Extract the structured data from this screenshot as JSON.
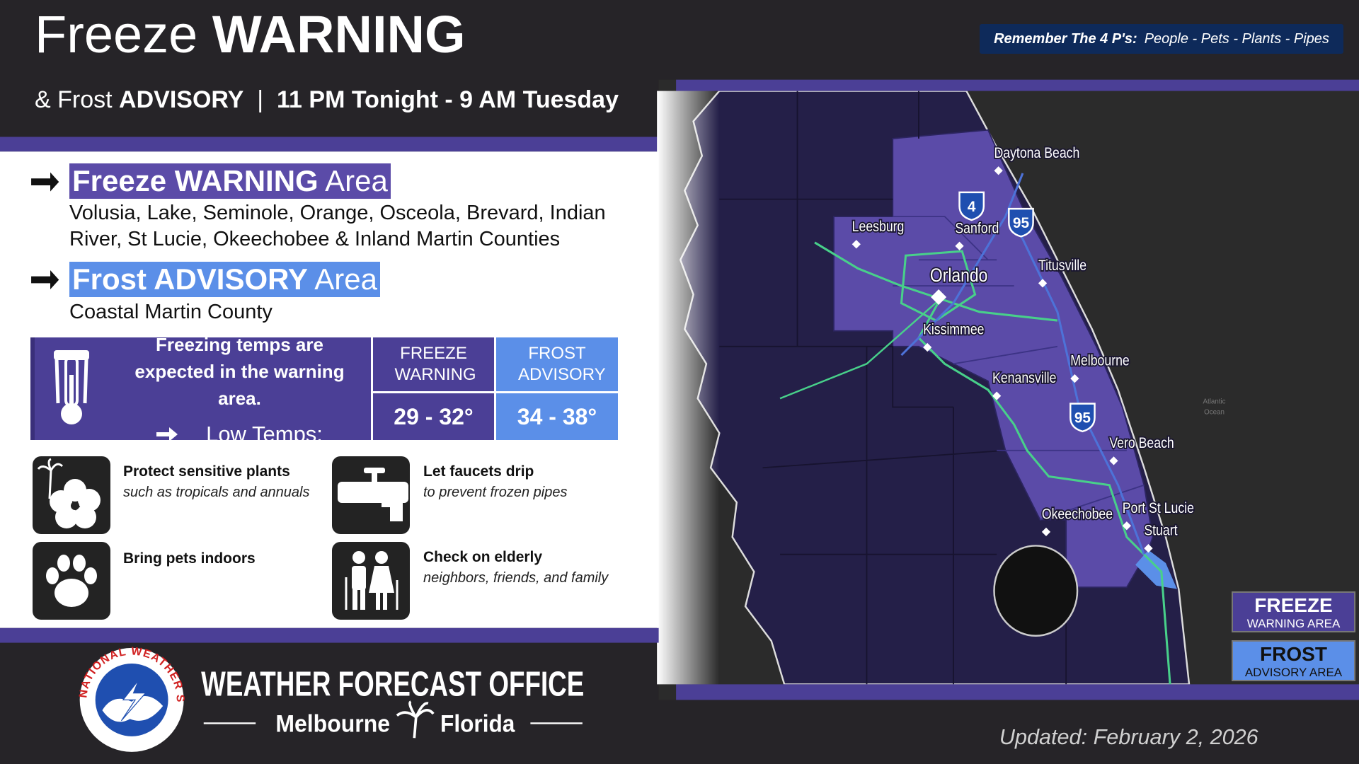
{
  "header": {
    "title_light": "Freeze",
    "title_bold": "WARNING",
    "subtitle_light": "& Frost",
    "subtitle_bold": "ADVISORY",
    "separator": "|",
    "time": "11 PM Tonight - 9 AM Tuesday"
  },
  "reminder": {
    "label": "Remember The 4 P's:",
    "items": "People - Pets - Plants - Pipes"
  },
  "areas": [
    {
      "heading_bold": "Freeze WARNING",
      "heading_light": "Area",
      "counties": "Volusia, Lake, Seminole, Orange, Osceola, Brevard, Indian River, St Lucie, Okeechobee & Inland Martin Counties"
    },
    {
      "heading_bold": "Frost ADVISORY",
      "heading_light": "Area",
      "counties": "Coastal Martin County"
    }
  ],
  "temps": {
    "note": "Freezing temps are expected in the warning area.",
    "low_label": "Low Temps:",
    "columns": [
      {
        "title": "FREEZE WARNING",
        "range": "29 - 32°"
      },
      {
        "title": "FROST ADVISORY",
        "range": "34 - 38°"
      }
    ]
  },
  "tips": [
    {
      "title": "Protect sensitive plants",
      "detail": "such as tropicals and annuals"
    },
    {
      "title": "Let faucets drip",
      "detail": "to prevent frozen pipes"
    },
    {
      "title": "Bring pets indoors"
    },
    {
      "title": "Check on elderly",
      "detail": "neighbors, friends, and family"
    }
  ],
  "map": {
    "cities": [
      {
        "name": "Daytona Beach",
        "x": 1147,
        "y": 184
      },
      {
        "name": "Leesburg",
        "x": 983,
        "y": 269
      },
      {
        "name": "Sanford",
        "x": 1102,
        "y": 271
      },
      {
        "name": "Orlando",
        "x": 1073,
        "y": 327
      },
      {
        "name": "Titusville",
        "x": 1198,
        "y": 314
      },
      {
        "name": "Kissimmee",
        "x": 1065,
        "y": 388
      },
      {
        "name": "Melbourne",
        "x": 1235,
        "y": 424
      },
      {
        "name": "Kenansville",
        "x": 1145,
        "y": 444
      },
      {
        "name": "Vero Beach",
        "x": 1280,
        "y": 519
      },
      {
        "name": "Okeechobee",
        "x": 1202,
        "y": 601
      },
      {
        "name": "Port St Lucie",
        "x": 1295,
        "y": 594
      },
      {
        "name": "Stuart",
        "x": 1320,
        "y": 620
      }
    ],
    "shields": [
      {
        "label": "4",
        "x": 1121,
        "y": 236
      },
      {
        "label": "95",
        "x": 1178,
        "y": 255
      },
      {
        "label": "95",
        "x": 1249,
        "y": 480
      }
    ],
    "ocean_label": [
      "Atlantic",
      "Ocean"
    ]
  },
  "legend": [
    {
      "title": "FREEZE",
      "subtitle": "WARNING AREA"
    },
    {
      "title": "FROST",
      "subtitle": "ADVISORY AREA"
    }
  ],
  "footer": {
    "logo_text": "NATIONAL WEATHER SERVICE",
    "office": "WEATHER FORECAST OFFICE",
    "city": "Melbourne",
    "state": "Florida",
    "updated": "Updated: February 2, 2026"
  }
}
